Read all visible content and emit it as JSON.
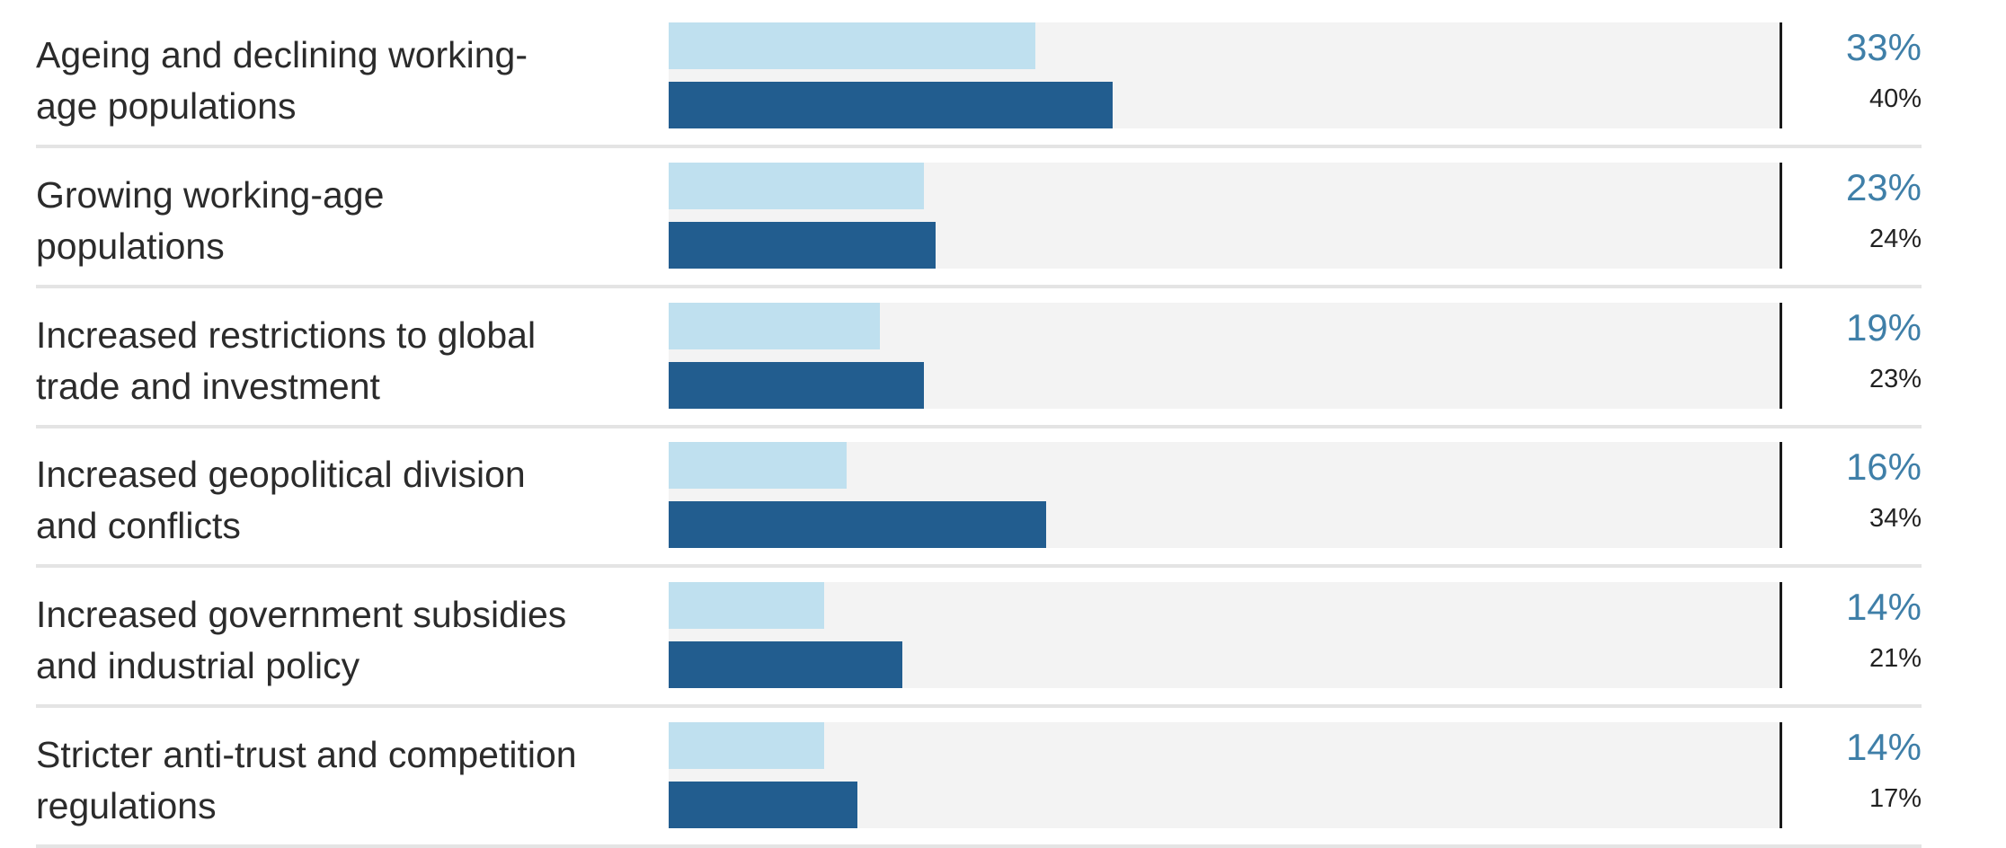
{
  "chart_data": {
    "type": "bar",
    "orientation": "horizontal",
    "categories": [
      "Ageing and declining working-age populations",
      "Growing working-age populations",
      "Increased restrictions to global trade and investment",
      "Increased geopolitical division and conflicts",
      "Increased government subsidies and industrial policy",
      "Stricter anti-trust and competition regulations"
    ],
    "label_lines": [
      [
        "Ageing and declining working-",
        "age populations"
      ],
      [
        "Growing working-age",
        "populations"
      ],
      [
        "Increased restrictions to global",
        "trade and investment"
      ],
      [
        "Increased geopolitical division",
        "and conflicts"
      ],
      [
        "Increased government subsidies",
        "and industrial policy"
      ],
      [
        "Stricter anti-trust and competition",
        "regulations"
      ]
    ],
    "series": [
      {
        "name": "primary",
        "color": "#bfe0ef",
        "label_color": "#3f7fa8",
        "values": [
          33,
          23,
          19,
          16,
          14,
          14
        ],
        "labels": [
          "33%",
          "23%",
          "19%",
          "16%",
          "14%",
          "14%"
        ]
      },
      {
        "name": "secondary",
        "color": "#225d8f",
        "label_color": "#222222",
        "values": [
          40,
          24,
          23,
          34,
          21,
          17
        ],
        "labels": [
          "40%",
          "24%",
          "23%",
          "34%",
          "21%",
          "17%"
        ]
      }
    ],
    "xlim": [
      0,
      100
    ],
    "track_color": "#f3f3f3",
    "title": "",
    "xlabel": "",
    "ylabel": "",
    "grid": false,
    "legend": "none"
  }
}
